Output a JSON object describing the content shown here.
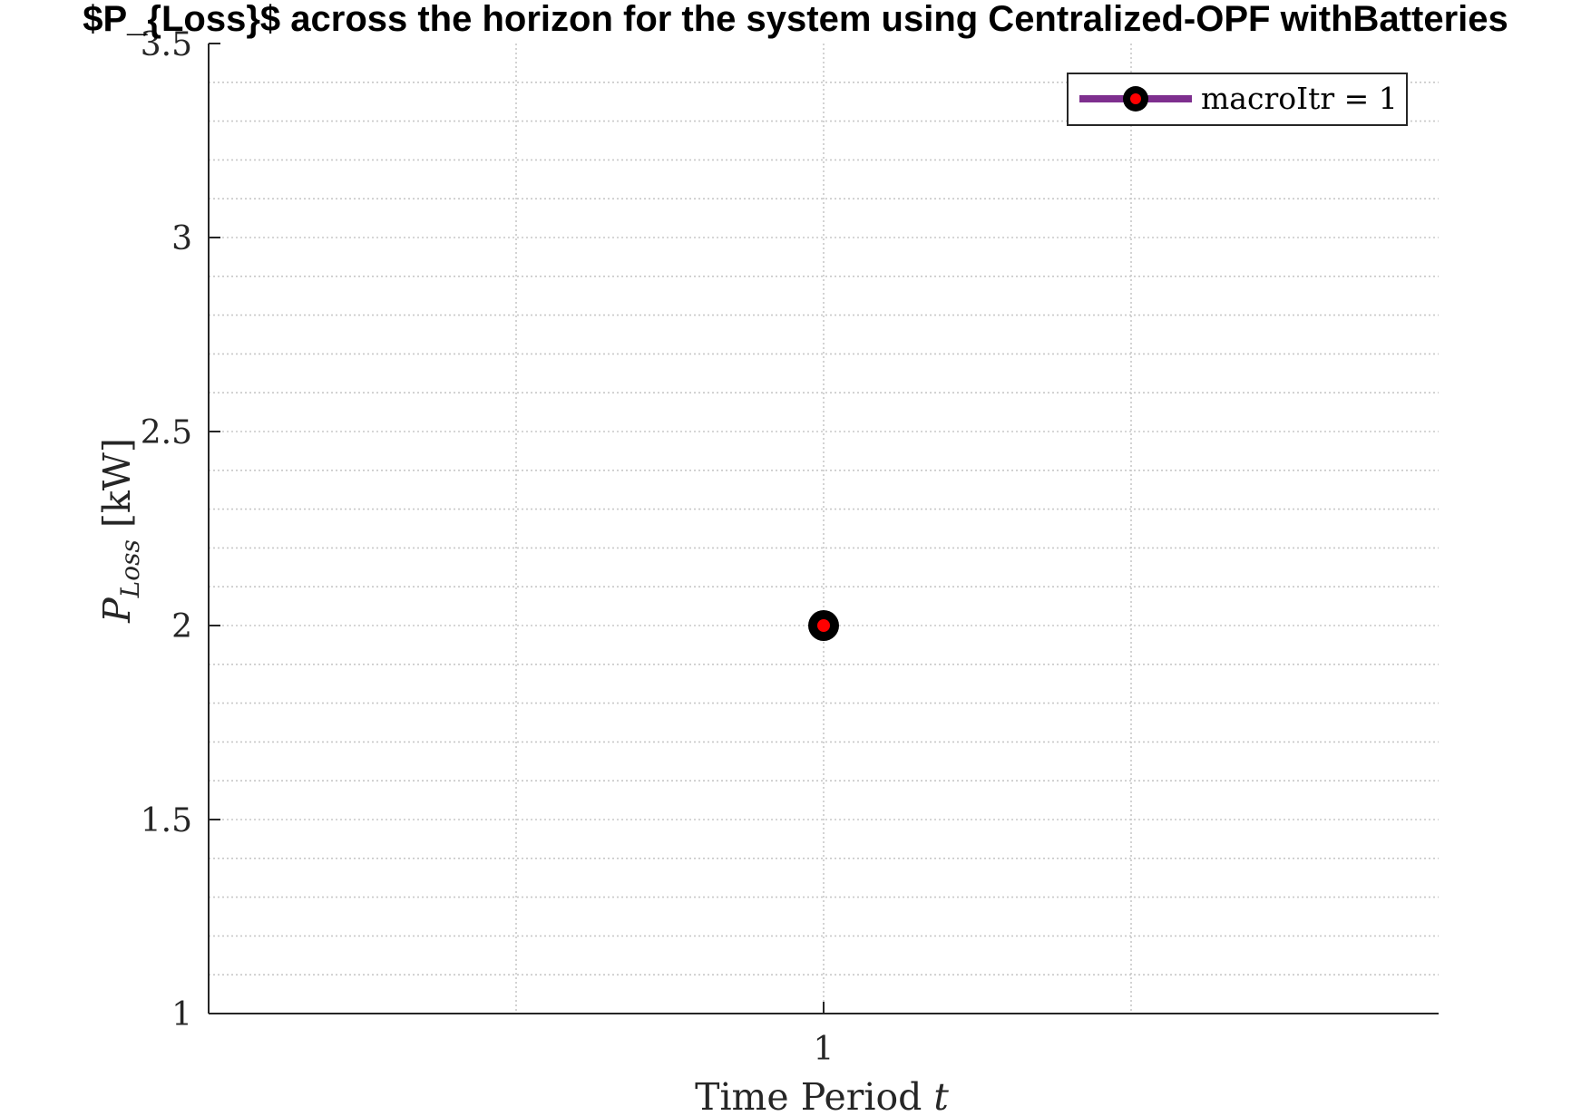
{
  "chart_data": {
    "type": "line",
    "title": "$P_{Loss}$ across the horizon for the system using Centralized-OPF withBatteries",
    "xlabel": "Time Period t",
    "ylabel": "P_Loss [kW]",
    "x_ticks": [
      1
    ],
    "x_tick_labels": [
      "1"
    ],
    "xlim": [
      0,
      2
    ],
    "ylim": [
      1,
      3.5
    ],
    "y_ticks": [
      1,
      1.5,
      2,
      2.5,
      3,
      3.5
    ],
    "y_tick_labels": [
      "1",
      "1.5",
      "2",
      "2.5",
      "3",
      "3.5"
    ],
    "y_minor_step": 0.1,
    "grid": true,
    "legend_position": "top-right",
    "series": [
      {
        "name": "macroItr = 1",
        "x": [
          1
        ],
        "y": [
          2.0
        ],
        "line_color": "#7E2F8E",
        "marker_edge_color": "#000000",
        "marker_face_color": "#FF0000"
      }
    ]
  }
}
